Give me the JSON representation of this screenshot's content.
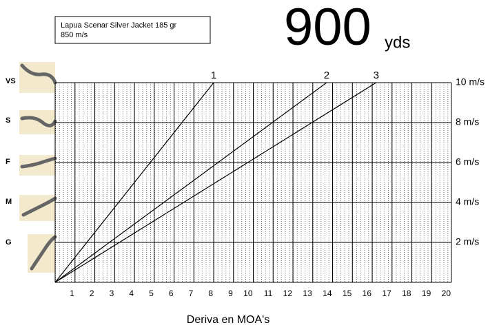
{
  "header": {
    "bullet": "Lapua Scenar Silver Jacket 185 gr",
    "velocity": "850 m/s",
    "distance": "900",
    "unit": "yds"
  },
  "wind_labels": [
    "VS",
    "S",
    "F",
    "M",
    "G"
  ],
  "chart_data": {
    "type": "line",
    "x_label": "Deriva en MOA's",
    "xlim": [
      0,
      20
    ],
    "ylim": [
      0,
      10
    ],
    "xticks": [
      1,
      2,
      3,
      4,
      5,
      6,
      7,
      8,
      9,
      10,
      11,
      12,
      13,
      14,
      15,
      16,
      17,
      18,
      19,
      20
    ],
    "yticks": [
      {
        "value": 2,
        "label": "2 m/s"
      },
      {
        "value": 4,
        "label": "4 m/s"
      },
      {
        "value": 6,
        "label": "6 m/s"
      },
      {
        "value": 8,
        "label": "8 m/s"
      },
      {
        "value": 10,
        "label": "10 m/s"
      }
    ],
    "grid": true,
    "series": [
      {
        "name": "1",
        "color": "#000000",
        "x": [
          0,
          8.0
        ],
        "values": [
          0,
          10
        ]
      },
      {
        "name": "2",
        "color": "#000000",
        "x": [
          0,
          13.7
        ],
        "values": [
          0,
          10
        ]
      },
      {
        "name": "3",
        "color": "#000000",
        "x": [
          0,
          16.2
        ],
        "values": [
          0,
          10
        ]
      }
    ]
  }
}
